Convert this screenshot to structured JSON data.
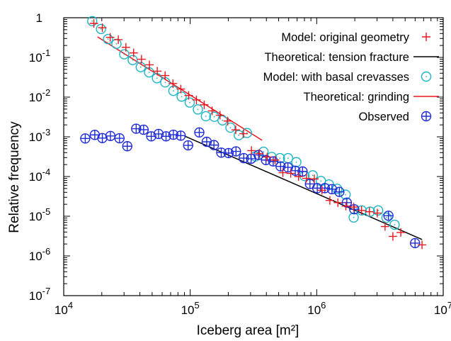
{
  "chart_data": {
    "type": "scatter",
    "xlabel": "Iceberg area [m²]",
    "ylabel": "Relative frequency",
    "xscale": "log",
    "yscale": "log",
    "xlim": [
      10000,
      10000000
    ],
    "ylim": [
      1e-07,
      1
    ],
    "x_ticks": [
      {
        "value": 10000,
        "base": "10",
        "exp": "4"
      },
      {
        "value": 100000,
        "base": "10",
        "exp": "5"
      },
      {
        "value": 1000000,
        "base": "10",
        "exp": "6"
      },
      {
        "value": 10000000,
        "base": "10",
        "exp": "7"
      }
    ],
    "y_ticks": [
      {
        "value": 1,
        "base": "1",
        "exp": ""
      },
      {
        "value": 0.1,
        "base": "10",
        "exp": "-1"
      },
      {
        "value": 0.01,
        "base": "10",
        "exp": "-2"
      },
      {
        "value": 0.001,
        "base": "10",
        "exp": "-3"
      },
      {
        "value": 0.0001,
        "base": "10",
        "exp": "-4"
      },
      {
        "value": 1e-05,
        "base": "10",
        "exp": "-5"
      },
      {
        "value": 1e-06,
        "base": "10",
        "exp": "-6"
      },
      {
        "value": 1e-07,
        "base": "10",
        "exp": "-7"
      }
    ],
    "grid": false,
    "legend_position": "top-right",
    "series": [
      {
        "name": "Model: original geometry",
        "kind": "points",
        "marker": "plus",
        "color": "#e8161d",
        "points": [
          [
            17300,
            0.72
          ],
          [
            20200,
            0.56
          ],
          [
            23300,
            0.32
          ],
          [
            27000,
            0.28
          ],
          [
            31000,
            0.18
          ],
          [
            35700,
            0.13
          ],
          [
            41200,
            0.09
          ],
          [
            47600,
            0.065
          ],
          [
            54900,
            0.045
          ],
          [
            63300,
            0.035
          ],
          [
            73000,
            0.022
          ],
          [
            84300,
            0.016
          ],
          [
            97200,
            0.011
          ],
          [
            112000,
            0.0085
          ],
          [
            129000,
            0.0064
          ],
          [
            149000,
            0.0045
          ],
          [
            172000,
            0.0035
          ],
          [
            198000,
            0.0025
          ],
          [
            229000,
            0.0015
          ],
          [
            264000,
            0.0012
          ],
          [
            305000,
            0.00045
          ],
          [
            352000,
            0.00038
          ],
          [
            406000,
            0.00031
          ],
          [
            468000,
            0.00026
          ],
          [
            540000,
            0.000125
          ],
          [
            623000,
            0.00012
          ],
          [
            719000,
            0.0001
          ],
          [
            829000,
            9e-05
          ],
          [
            957000,
            8.7e-05
          ],
          [
            1100000,
            4.5e-05
          ],
          [
            1270000,
            2.5e-05
          ],
          [
            1470000,
            2.2e-05
          ],
          [
            1700000,
            1.8e-05
          ],
          [
            1960000,
            1.7e-05
          ],
          [
            2260000,
            1.4e-05
          ],
          [
            2610000,
            1.3e-05
          ],
          [
            3010000,
            1.2e-05
          ],
          [
            3470000,
            5.5e-06
          ],
          [
            4000000,
            3.1e-06
          ],
          [
            4620000,
            3.9e-06
          ],
          [
            6800000,
            1.9e-06
          ]
        ]
      },
      {
        "name": "Theoretical: tension fracture",
        "kind": "line",
        "color": "#000000",
        "points": [
          [
            90000,
            0.00105
          ],
          [
            6800000,
            2.6e-06
          ]
        ]
      },
      {
        "name": "Model: with basal crevasses",
        "kind": "points",
        "marker": "dotted-circle",
        "color": "#1ab4c4",
        "points": [
          [
            16800,
            0.82
          ],
          [
            19700,
            0.52
          ],
          [
            22400,
            0.29
          ],
          [
            26100,
            0.22
          ],
          [
            30100,
            0.12
          ],
          [
            35100,
            0.086
          ],
          [
            40600,
            0.057
          ],
          [
            47300,
            0.042
          ],
          [
            54600,
            0.03
          ],
          [
            63500,
            0.0235
          ],
          [
            73600,
            0.0144
          ],
          [
            85500,
            0.0103
          ],
          [
            99100,
            0.0073
          ],
          [
            115000,
            0.0049
          ],
          [
            133000,
            0.0033
          ],
          [
            155000,
            0.0032
          ],
          [
            180000,
            0.0026
          ],
          [
            208000,
            0.0017
          ],
          [
            242000,
            0.0011
          ],
          [
            281000,
            0.00125
          ],
          [
            327000,
            0.00032
          ],
          [
            380000,
            0.00042
          ],
          [
            441000,
            0.00031
          ],
          [
            512000,
            0.00029
          ],
          [
            594000,
            0.00029
          ],
          [
            690000,
            0.00023
          ],
          [
            801000,
            0.000103
          ],
          [
            930000,
            0.000107
          ],
          [
            1080000,
            7.7e-05
          ],
          [
            1250000,
            6.3e-05
          ],
          [
            1450000,
            4.9e-05
          ],
          [
            1690000,
            3.5e-05
          ],
          [
            1960000,
            9.3e-06
          ],
          [
            2270000,
            1.4e-05
          ],
          [
            2640000,
            1.3e-05
          ],
          [
            3060000,
            1.4e-05
          ],
          [
            3560000,
            9.2e-06
          ],
          [
            4130000,
            6.1e-06
          ]
        ]
      },
      {
        "name": "Theoretical: grinding",
        "kind": "line",
        "color": "#e8161d",
        "points": [
          [
            18500,
            0.33
          ],
          [
            370000,
            0.00082
          ]
        ]
      },
      {
        "name": "Observed",
        "kind": "points",
        "marker": "circled-plus",
        "color": "#1f2bd6",
        "points": [
          [
            14800,
            0.00091
          ],
          [
            17600,
            0.00112
          ],
          [
            20200,
            0.00093
          ],
          [
            23400,
            0.00105
          ],
          [
            27600,
            0.00092
          ],
          [
            31800,
            0.00058
          ],
          [
            37400,
            0.0016
          ],
          [
            42800,
            0.00151
          ],
          [
            49200,
            0.00103
          ],
          [
            56200,
            0.00118
          ],
          [
            64400,
            0.00103
          ],
          [
            73600,
            0.00113
          ],
          [
            84100,
            0.00107
          ],
          [
            96300,
            0.00061
          ],
          [
            118000,
            0.00129
          ],
          [
            135000,
            0.00075
          ],
          [
            154000,
            0.00062
          ],
          [
            176000,
            0.0004
          ],
          [
            201000,
            0.00039
          ],
          [
            230000,
            0.00043
          ],
          [
            265000,
            0.00029
          ],
          [
            303000,
            0.00028
          ],
          [
            347000,
            0.00035
          ],
          [
            397000,
            0.00026
          ],
          [
            453000,
            0.00024
          ],
          [
            518000,
            0.00018
          ],
          [
            592000,
            0.00017
          ],
          [
            677000,
            0.00014
          ],
          [
            773000,
            0.000134
          ],
          [
            884000,
            6.5e-05
          ],
          [
            1010000,
            5.1e-05
          ],
          [
            1160000,
            5.1e-05
          ],
          [
            1320000,
            4.8e-05
          ],
          [
            1510000,
            4.1e-05
          ],
          [
            1730000,
            2.2e-05
          ],
          [
            1980000,
            1.5e-05
          ],
          [
            3690000,
            1.03e-05
          ],
          [
            5990000,
            2.1e-06
          ]
        ]
      }
    ]
  }
}
